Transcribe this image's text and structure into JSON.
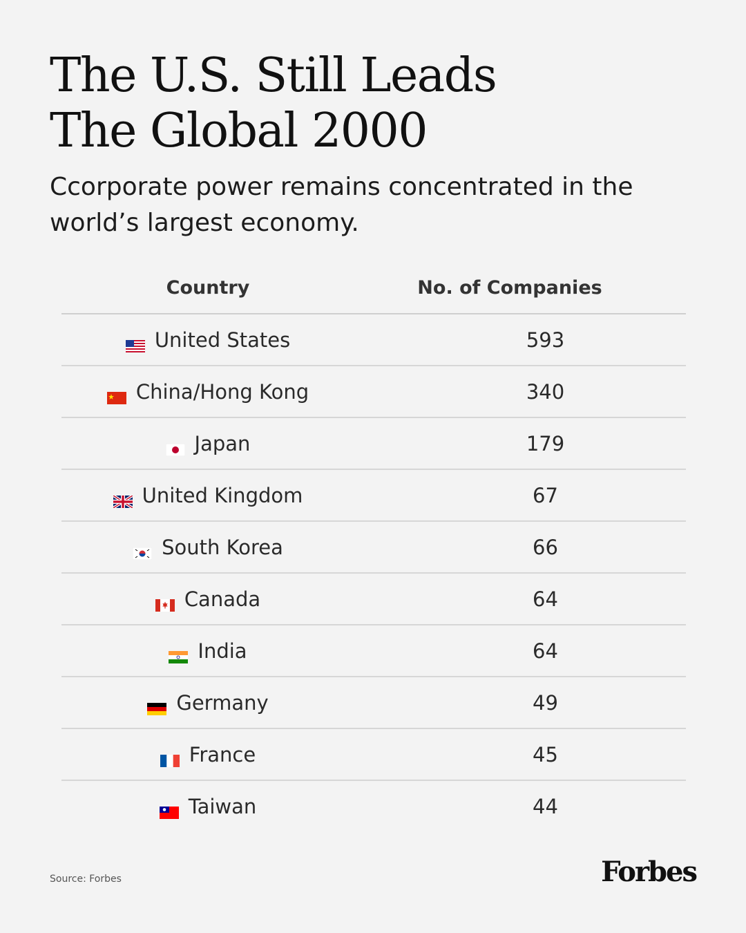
{
  "title": {
    "line1": "The U.S. Still Leads",
    "line2": "The Global 2000"
  },
  "subtitle": "Ccorporate power remains concentrated in the world’s largest economy.",
  "chart_data": {
    "type": "table",
    "columns": [
      "Country",
      "No. of Companies"
    ],
    "rows": [
      {
        "country": "United States",
        "flag": "us-flag",
        "count": 593
      },
      {
        "country": "China/Hong Kong",
        "flag": "china-flag",
        "count": 340
      },
      {
        "country": "Japan",
        "flag": "japan-flag",
        "count": 179
      },
      {
        "country": "United Kingdom",
        "flag": "uk-flag",
        "count": 67
      },
      {
        "country": "South Korea",
        "flag": "south-korea-flag",
        "count": 66
      },
      {
        "country": "Canada",
        "flag": "canada-flag",
        "count": 64
      },
      {
        "country": "India",
        "flag": "india-flag",
        "count": 64
      },
      {
        "country": "Germany",
        "flag": "germany-flag",
        "count": 49
      },
      {
        "country": "France",
        "flag": "france-flag",
        "count": 45
      },
      {
        "country": "Taiwan",
        "flag": "taiwan-flag",
        "count": 44
      }
    ]
  },
  "source": "Source: Forbes",
  "logo": "Forbes"
}
